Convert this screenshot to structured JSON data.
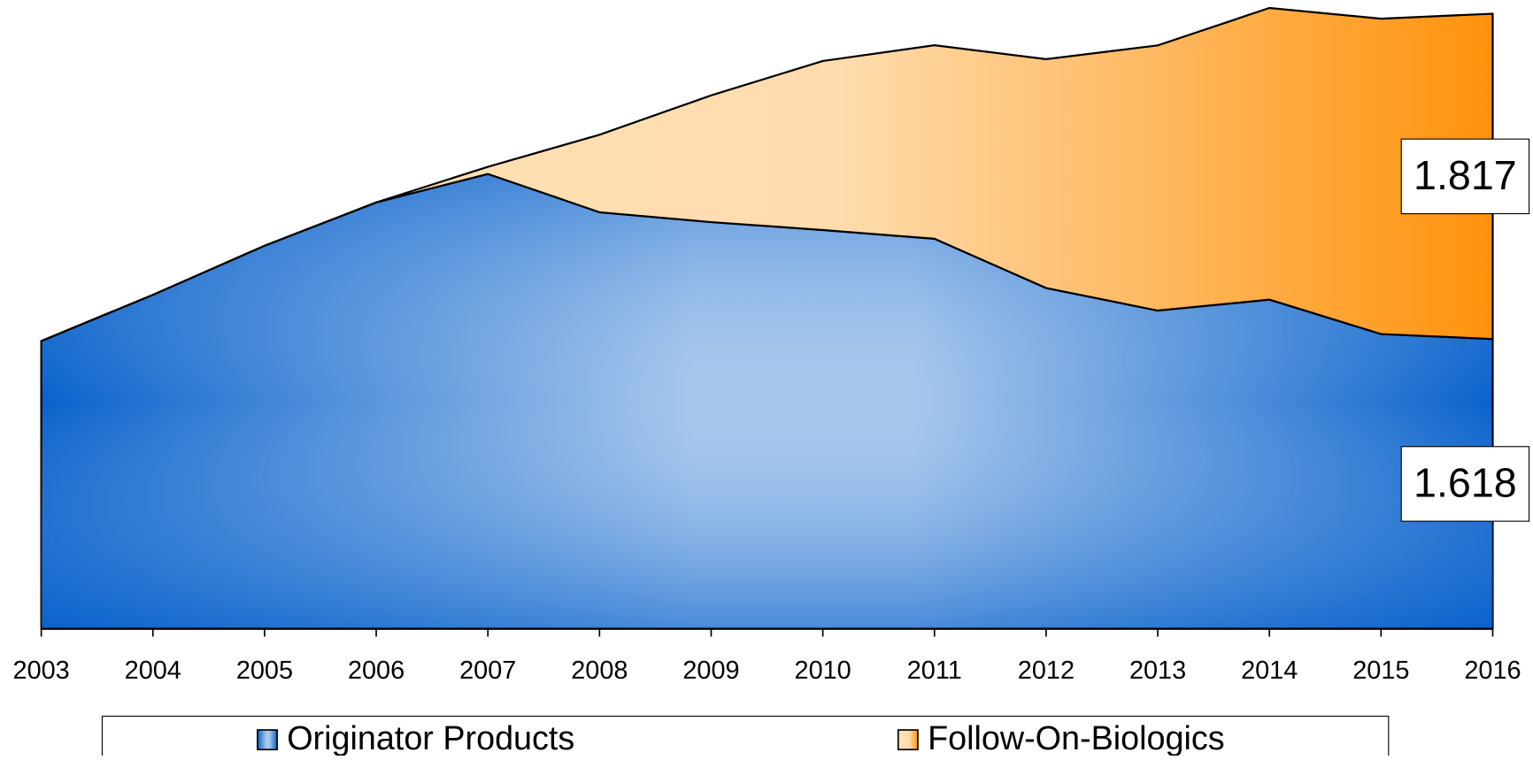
{
  "chart_data": {
    "type": "area",
    "stacked": true,
    "categories": [
      "2003",
      "2004",
      "2005",
      "2006",
      "2007",
      "2008",
      "2009",
      "2010",
      "2011",
      "2012",
      "2013",
      "2014",
      "2015",
      "2016"
    ],
    "series": [
      {
        "name": "Originator Products",
        "color": "#1a66cc",
        "values": [
          1.607,
          1.865,
          2.139,
          2.381,
          2.54,
          2.326,
          2.271,
          2.227,
          2.178,
          1.903,
          1.777,
          1.838,
          1.646,
          1.618
        ]
      },
      {
        "name": "Follow-On-Biologics",
        "color": "#ff9a1a",
        "values": [
          0,
          0,
          0,
          0,
          0.04,
          0.433,
          0.708,
          0.944,
          1.081,
          1.278,
          1.481,
          1.629,
          1.761,
          1.817
        ]
      }
    ],
    "ylim": [
      0,
      3.5
    ],
    "legend": "bottom"
  }
}
